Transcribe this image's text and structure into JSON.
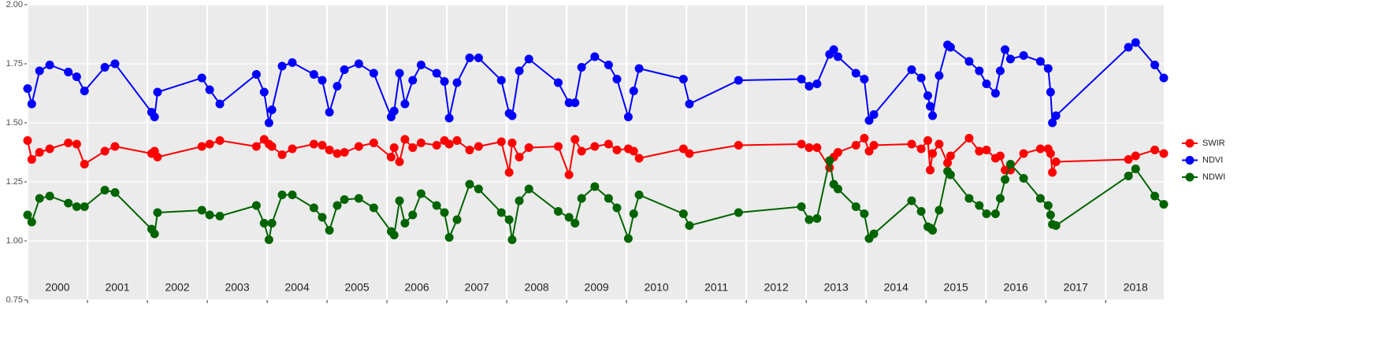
{
  "chart_data": {
    "type": "line",
    "x": [
      2000.0,
      2000.07,
      2000.2,
      2000.37,
      2000.68,
      2000.82,
      2000.95,
      2001.29,
      2001.46,
      2002.07,
      2002.12,
      2002.17,
      2002.91,
      2003.04,
      2003.21,
      2003.82,
      2003.95,
      2004.03,
      2004.08,
      2004.25,
      2004.42,
      2004.78,
      2004.92,
      2005.04,
      2005.17,
      2005.29,
      2005.53,
      2005.78,
      2006.07,
      2006.12,
      2006.21,
      2006.3,
      2006.43,
      2006.57,
      2006.83,
      2006.96,
      2007.04,
      2007.17,
      2007.38,
      2007.53,
      2007.91,
      2008.04,
      2008.09,
      2008.21,
      2008.37,
      2008.86,
      2009.04,
      2009.14,
      2009.25,
      2009.47,
      2009.7,
      2009.84,
      2010.03,
      2010.12,
      2010.21,
      2010.95,
      2011.05,
      2011.87,
      2012.92,
      2013.05,
      2013.18,
      2013.39,
      2013.46,
      2013.53,
      2013.83,
      2013.97,
      2014.05,
      2014.13,
      2014.76,
      2014.92,
      2015.03,
      2015.07,
      2015.11,
      2015.22,
      2015.36,
      2015.41,
      2015.72,
      2015.89,
      2016.01,
      2016.16,
      2016.24,
      2016.32,
      2016.41,
      2016.63,
      2016.91,
      2017.04,
      2017.08,
      2017.11,
      2017.17,
      2018.38,
      2018.5,
      2018.82,
      2018.97
    ],
    "series": [
      {
        "name": "SWIR",
        "color": "#ff0000",
        "values": [
          1.425,
          1.345,
          1.375,
          1.39,
          1.415,
          1.41,
          1.325,
          1.38,
          1.4,
          1.37,
          1.38,
          1.355,
          1.4,
          1.41,
          1.425,
          1.4,
          1.43,
          1.41,
          1.4,
          1.365,
          1.39,
          1.41,
          1.405,
          1.385,
          1.37,
          1.375,
          1.4,
          1.415,
          1.355,
          1.395,
          1.335,
          1.43,
          1.395,
          1.415,
          1.405,
          1.425,
          1.41,
          1.425,
          1.385,
          1.4,
          1.42,
          1.29,
          1.415,
          1.355,
          1.395,
          1.4,
          1.28,
          1.43,
          1.38,
          1.4,
          1.41,
          1.385,
          1.39,
          1.38,
          1.35,
          1.39,
          1.37,
          1.405,
          1.41,
          1.395,
          1.395,
          1.31,
          1.355,
          1.375,
          1.405,
          1.435,
          1.38,
          1.405,
          1.41,
          1.39,
          1.425,
          1.3,
          1.37,
          1.41,
          1.33,
          1.36,
          1.435,
          1.38,
          1.385,
          1.35,
          1.36,
          1.3,
          1.3,
          1.37,
          1.39,
          1.39,
          1.37,
          1.29,
          1.335,
          1.345,
          1.36,
          1.385,
          1.37
        ]
      },
      {
        "name": "NDVI",
        "color": "#0000ff",
        "values": [
          1.645,
          1.58,
          1.72,
          1.745,
          1.715,
          1.695,
          1.635,
          1.735,
          1.75,
          1.545,
          1.525,
          1.63,
          1.69,
          1.64,
          1.58,
          1.705,
          1.63,
          1.5,
          1.555,
          1.74,
          1.755,
          1.705,
          1.68,
          1.545,
          1.655,
          1.725,
          1.75,
          1.71,
          1.525,
          1.55,
          1.71,
          1.58,
          1.68,
          1.745,
          1.71,
          1.675,
          1.52,
          1.67,
          1.775,
          1.775,
          1.68,
          1.54,
          1.53,
          1.72,
          1.77,
          1.67,
          1.585,
          1.585,
          1.735,
          1.78,
          1.745,
          1.685,
          1.525,
          1.635,
          1.73,
          1.685,
          1.58,
          1.68,
          1.685,
          1.655,
          1.665,
          1.79,
          1.81,
          1.78,
          1.71,
          1.685,
          1.51,
          1.535,
          1.725,
          1.69,
          1.615,
          1.57,
          1.53,
          1.7,
          1.83,
          1.82,
          1.76,
          1.72,
          1.665,
          1.625,
          1.72,
          1.81,
          1.77,
          1.785,
          1.76,
          1.73,
          1.63,
          1.5,
          1.53,
          1.82,
          1.84,
          1.745,
          1.69
        ]
      },
      {
        "name": "NDWI",
        "color": "#006400",
        "values": [
          1.11,
          1.08,
          1.18,
          1.19,
          1.16,
          1.145,
          1.145,
          1.215,
          1.205,
          1.05,
          1.03,
          1.12,
          1.13,
          1.11,
          1.105,
          1.15,
          1.075,
          1.005,
          1.075,
          1.195,
          1.195,
          1.14,
          1.1,
          1.045,
          1.15,
          1.175,
          1.18,
          1.14,
          1.04,
          1.025,
          1.17,
          1.075,
          1.11,
          1.2,
          1.15,
          1.12,
          1.015,
          1.09,
          1.24,
          1.22,
          1.12,
          1.09,
          1.005,
          1.17,
          1.22,
          1.125,
          1.1,
          1.075,
          1.18,
          1.23,
          1.18,
          1.14,
          1.01,
          1.115,
          1.195,
          1.115,
          1.065,
          1.12,
          1.145,
          1.09,
          1.095,
          1.34,
          1.24,
          1.22,
          1.145,
          1.115,
          1.01,
          1.03,
          1.17,
          1.125,
          1.06,
          1.055,
          1.045,
          1.13,
          1.295,
          1.28,
          1.18,
          1.15,
          1.115,
          1.115,
          1.18,
          1.26,
          1.325,
          1.265,
          1.18,
          1.15,
          1.11,
          1.07,
          1.065,
          1.275,
          1.305,
          1.19,
          1.155
        ]
      }
    ],
    "xlim": [
      2000,
      2018.97
    ],
    "xticks": [
      2000,
      2001,
      2002,
      2003,
      2004,
      2005,
      2006,
      2007,
      2008,
      2009,
      2010,
      2011,
      2012,
      2013,
      2014,
      2015,
      2016,
      2017,
      2018
    ],
    "ylim": [
      0.75,
      2.0
    ],
    "yticks": [
      {
        "value": 0.75,
        "label": "0.75"
      },
      {
        "value": 1.0,
        "label": "1.00"
      },
      {
        "value": 1.25,
        "label": "1.25"
      },
      {
        "value": 1.5,
        "label": "1.50"
      },
      {
        "value": 1.75,
        "label": "1.75"
      },
      {
        "value": 2.0,
        "label": "2.00"
      }
    ],
    "grid": true,
    "legend": "right"
  }
}
